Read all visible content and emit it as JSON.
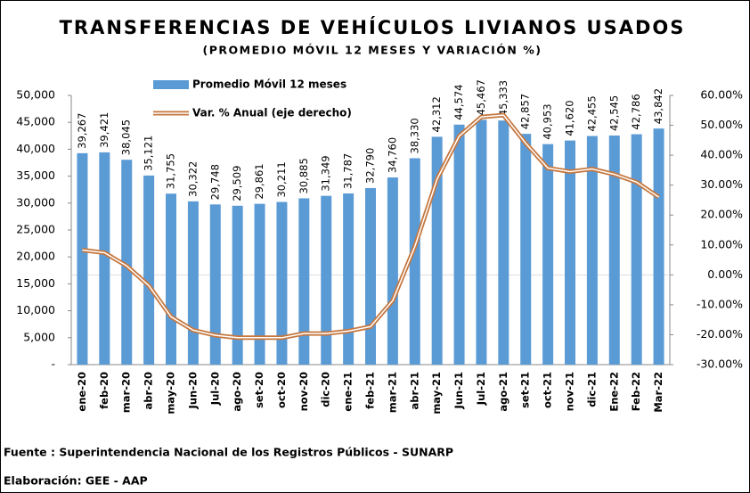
{
  "chart_data": {
    "type": "combo",
    "title": "TRANSFERENCIAS DE VEHÍCULOS LIVIANOS USADOS",
    "subtitle": "(PROMEDIO MÓVIL 12 MESES Y VARIACIÓN %)",
    "categories": [
      "ene-20",
      "feb-20",
      "mar-20",
      "abr-20",
      "may-20",
      "Jun-20",
      "Jul-20",
      "ago-20",
      "set-20",
      "oct-20",
      "nov-20",
      "dic-20",
      "ene-21",
      "feb-21",
      "mar-21",
      "abr-21",
      "may-21",
      "Jun-21",
      "Jul-21",
      "ago-21",
      "set-21",
      "oct-21",
      "nov-21",
      "dic-21",
      "Ene-22",
      "Feb-22",
      "Mar-22"
    ],
    "series": [
      {
        "name": "Promedio Móvil 12 meses",
        "type": "bar",
        "color": "#5b9bd5",
        "values": [
          39267,
          39421,
          38045,
          35121,
          31755,
          30322,
          29748,
          29509,
          29861,
          30211,
          30885,
          31349,
          31787,
          32790,
          34760,
          38330,
          42312,
          44574,
          45467,
          45333,
          42857,
          40953,
          41620,
          42455,
          42545,
          42786,
          43842
        ],
        "value_labels": [
          "39,267",
          "39,421",
          "38,045",
          "35,121",
          "31,755",
          "30,322",
          "29,748",
          "29,509",
          "29,861",
          "30,211",
          "30,885",
          "31,349",
          "31,787",
          "32,790",
          "34,760",
          "38,330",
          "42,312",
          "44,574",
          "45,467",
          "45,333",
          "42,857",
          "40,953",
          "41,620",
          "42,455",
          "42,545",
          "42,786",
          "43,842"
        ]
      },
      {
        "name": "Var. % Anual (eje derecho)",
        "type": "line",
        "axis": "y2",
        "color": "#c5773f",
        "values": [
          8.3,
          7.4,
          3,
          -3.6,
          -14,
          -18.5,
          -20.2,
          -21,
          -21,
          -21,
          -19.6,
          -19.6,
          -18.8,
          -17.3,
          -8.6,
          9.5,
          32,
          46.4,
          52.8,
          53.4,
          44,
          35.7,
          34.5,
          35.4,
          33.6,
          31,
          26
        ]
      }
    ],
    "ylim": [
      0,
      50000
    ],
    "yticks": [
      {
        "value": 0,
        "label": "-"
      },
      {
        "value": 5000,
        "label": "5,000"
      },
      {
        "value": 10000,
        "label": "10,000"
      },
      {
        "value": 15000,
        "label": "15,000"
      },
      {
        "value": 20000,
        "label": "20,000"
      },
      {
        "value": 25000,
        "label": "25,000"
      },
      {
        "value": 30000,
        "label": "30,000"
      },
      {
        "value": 35000,
        "label": "35,000"
      },
      {
        "value": 40000,
        "label": "40,000"
      },
      {
        "value": 45000,
        "label": "45,000"
      },
      {
        "value": 50000,
        "label": "50,000"
      }
    ],
    "y2lim": [
      -30,
      60
    ],
    "y2ticks": [
      {
        "value": 60,
        "label": "60.00%"
      },
      {
        "value": 50,
        "label": "50.00%"
      },
      {
        "value": 40,
        "label": "40.00%"
      },
      {
        "value": 30,
        "label": "30.00%"
      },
      {
        "value": 20,
        "label": "20.00%"
      },
      {
        "value": 10,
        "label": "10.00%"
      },
      {
        "value": 0,
        "label": "0.00%"
      },
      {
        "value": -10,
        "label": "-10.00%"
      },
      {
        "value": -20,
        "label": "-20.00%"
      },
      {
        "value": -30,
        "label": "-30.00%"
      }
    ],
    "grid": false,
    "notes": [
      "Fuente : Superintendencia Nacional de los Registros Públicos - SUNARP",
      "Elaboración: GEE - AAP"
    ]
  }
}
